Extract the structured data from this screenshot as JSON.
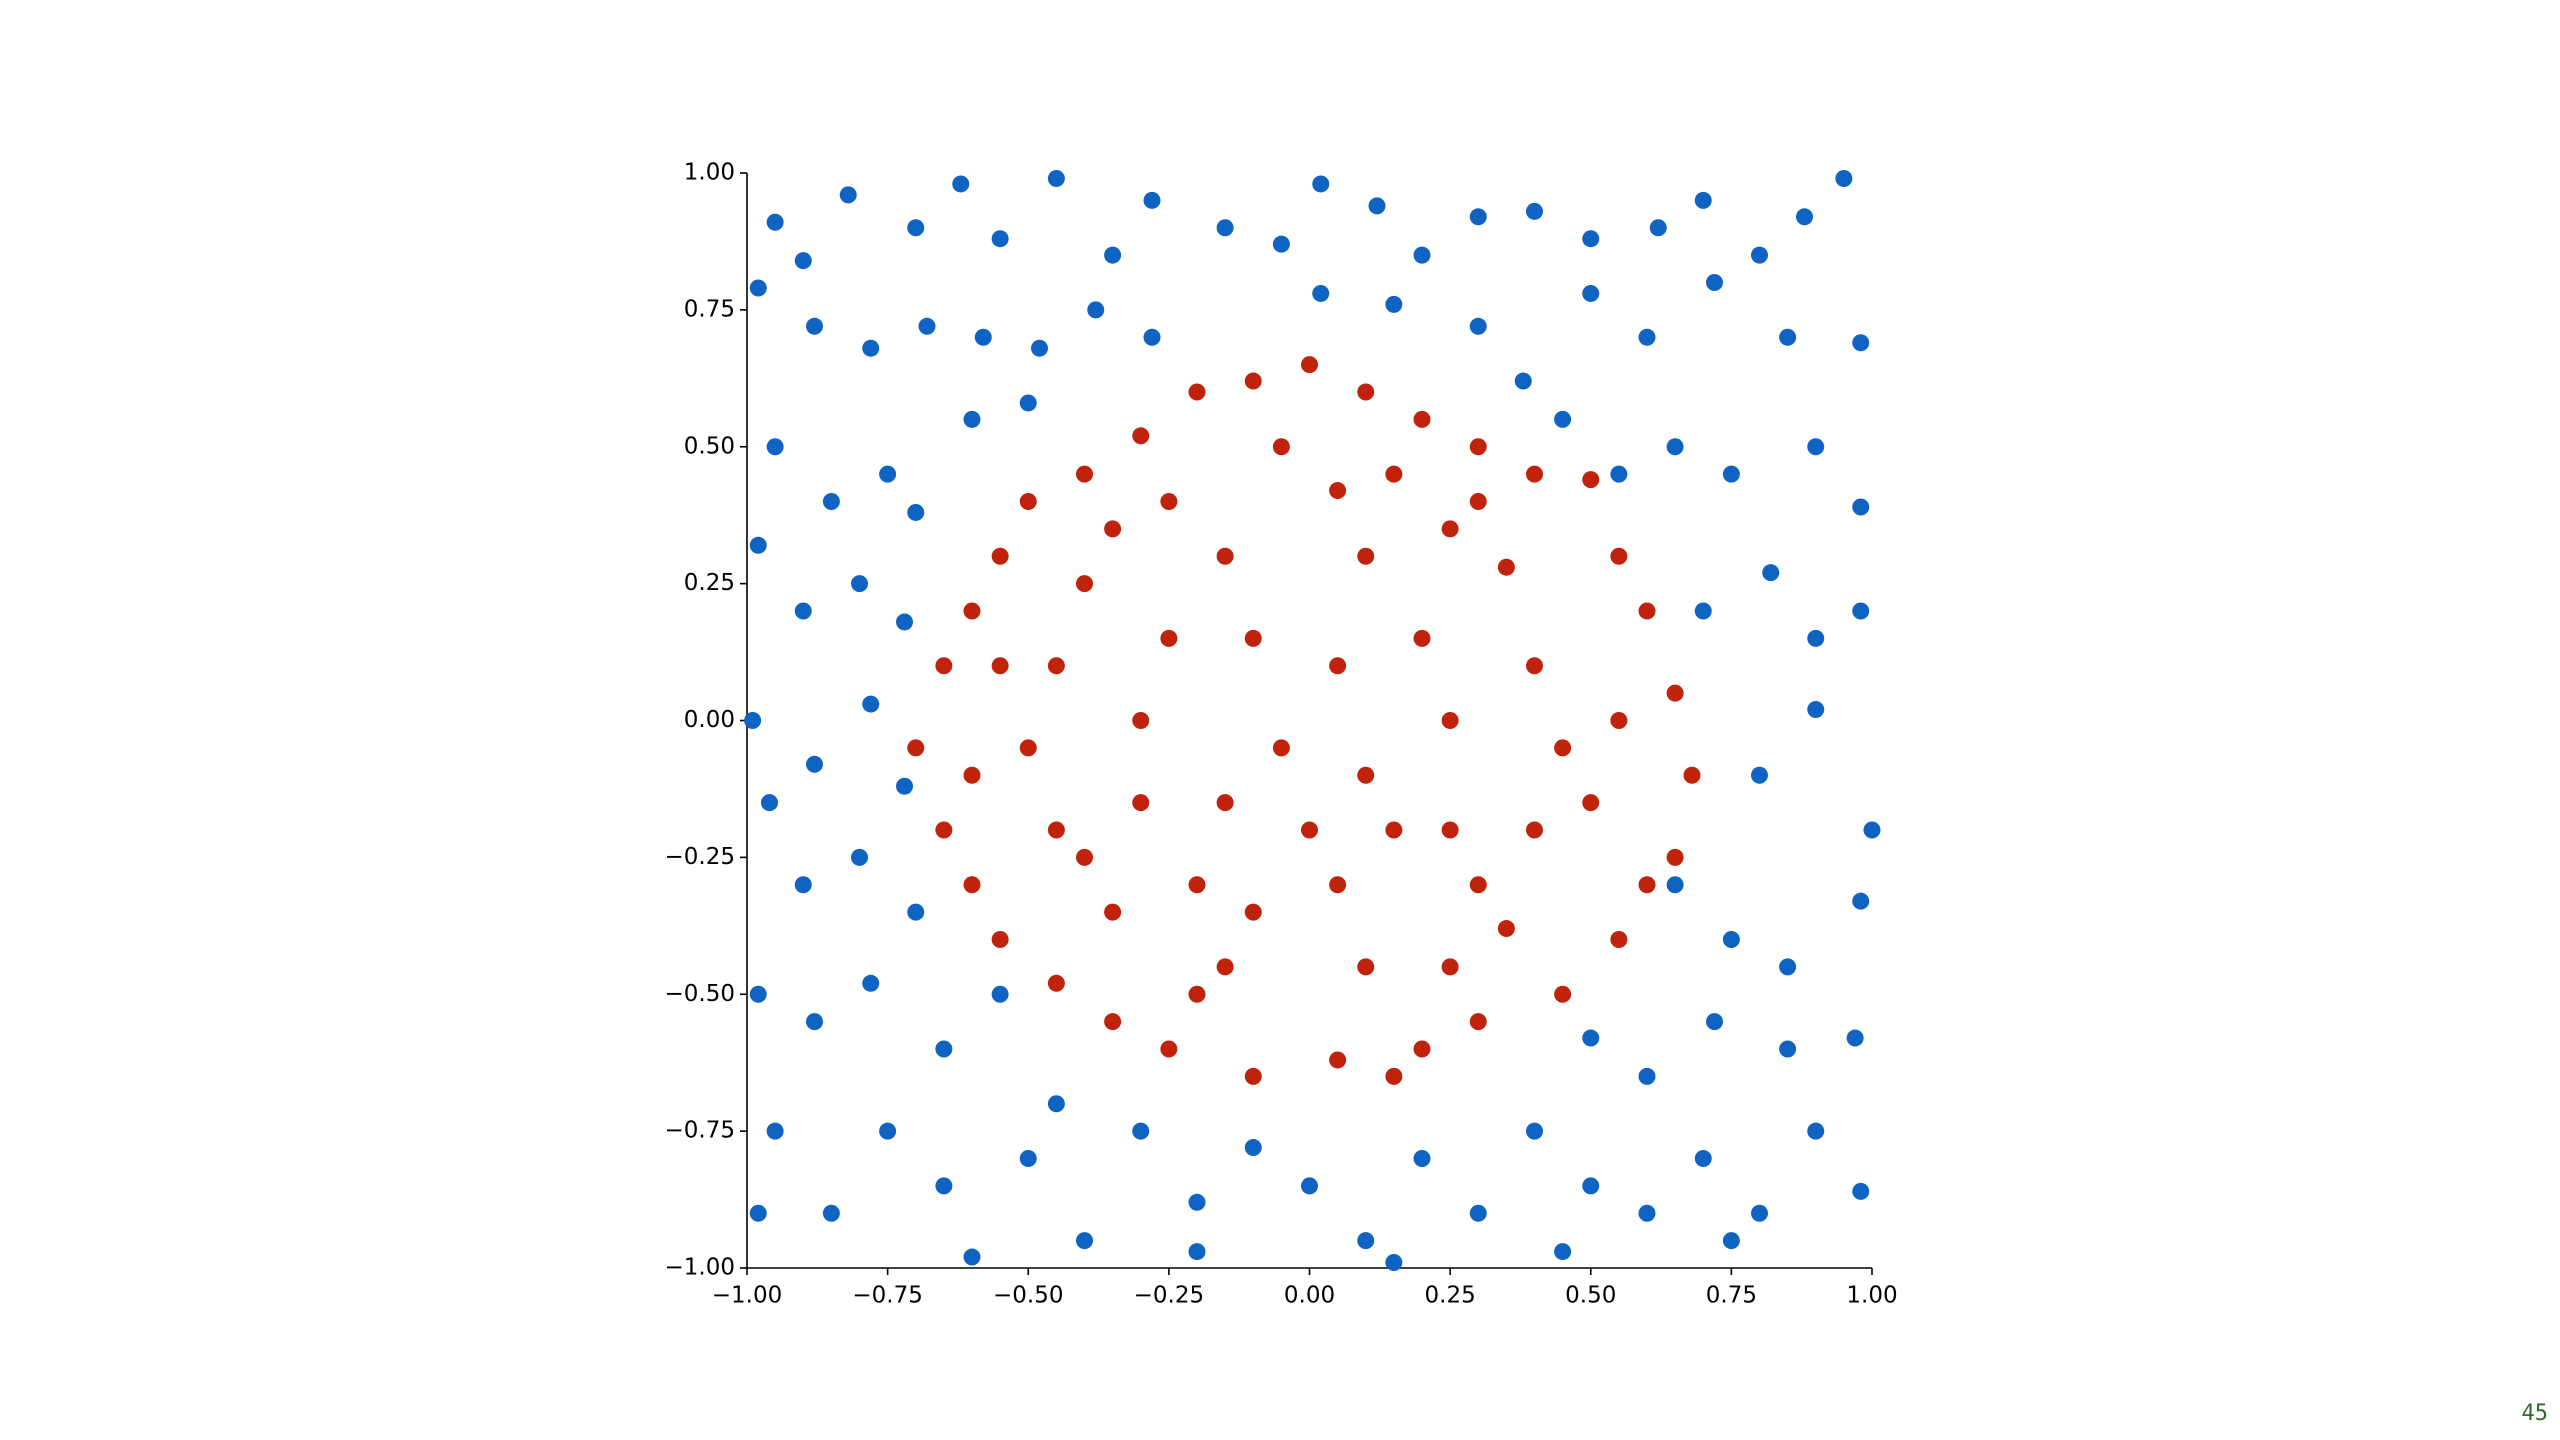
{
  "chart_data": {
    "type": "scatter",
    "xlim": [
      -1,
      1
    ],
    "ylim": [
      -1,
      1
    ],
    "xticks": [
      {
        "value": -1,
        "label": "−1.00"
      },
      {
        "value": -0.75,
        "label": "−0.75"
      },
      {
        "value": -0.5,
        "label": "−0.50"
      },
      {
        "value": -0.25,
        "label": "−0.25"
      },
      {
        "value": 0,
        "label": "0.00"
      },
      {
        "value": 0.25,
        "label": "0.25"
      },
      {
        "value": 0.5,
        "label": "0.50"
      },
      {
        "value": 0.75,
        "label": "0.75"
      },
      {
        "value": 1,
        "label": "1.00"
      }
    ],
    "yticks": [
      {
        "value": -1,
        "label": "−1.00"
      },
      {
        "value": -0.75,
        "label": "−0.75"
      },
      {
        "value": -0.5,
        "label": "−0.50"
      },
      {
        "value": -0.25,
        "label": "−0.25"
      },
      {
        "value": 0,
        "label": "0.00"
      },
      {
        "value": 0.25,
        "label": "0.25"
      },
      {
        "value": 0.5,
        "label": "0.50"
      },
      {
        "value": 0.75,
        "label": "0.75"
      },
      {
        "value": 1,
        "label": "1.00"
      }
    ],
    "grid": false,
    "series": [
      {
        "color": "#0f63c2",
        "x": [
          -0.95,
          -0.9,
          -0.82,
          -0.7,
          -0.62,
          -0.55,
          -0.45,
          -0.35,
          -0.28,
          -0.15,
          -0.05,
          0.02,
          0.12,
          0.2,
          0.3,
          0.4,
          0.5,
          0.62,
          0.7,
          0.8,
          0.88,
          0.95,
          -0.98,
          -0.88,
          -0.78,
          -0.68,
          -0.58,
          -0.48,
          -0.38,
          -0.28,
          0.02,
          0.15,
          0.3,
          0.38,
          0.5,
          0.6,
          0.72,
          0.85,
          0.98,
          -0.95,
          -0.85,
          -0.75,
          -0.7,
          -0.6,
          -0.5,
          0.45,
          0.55,
          0.65,
          0.75,
          0.9,
          0.98,
          -0.98,
          -0.9,
          -0.8,
          -0.72,
          0.7,
          0.82,
          0.9,
          0.98,
          -0.99,
          -0.88,
          -0.78,
          -0.72,
          0.8,
          0.9,
          1.0,
          -0.96,
          -0.9,
          -0.8,
          -0.7,
          0.65,
          0.75,
          0.85,
          0.98,
          -0.98,
          -0.88,
          -0.78,
          -0.65,
          -0.55,
          -0.45,
          0.5,
          0.6,
          0.72,
          0.85,
          0.97,
          -0.95,
          -0.85,
          -0.75,
          -0.65,
          -0.5,
          -0.4,
          -0.3,
          -0.2,
          -0.1,
          0.0,
          0.1,
          0.2,
          0.3,
          0.4,
          0.5,
          0.6,
          0.7,
          0.8,
          0.9,
          0.98,
          -0.98,
          -0.6,
          -0.2,
          0.15,
          0.45,
          0.75
        ],
        "values": [
          0.91,
          0.84,
          0.96,
          0.9,
          0.98,
          0.88,
          0.99,
          0.85,
          0.95,
          0.9,
          0.87,
          0.98,
          0.94,
          0.85,
          0.92,
          0.93,
          0.88,
          0.9,
          0.95,
          0.85,
          0.92,
          0.99,
          0.79,
          0.72,
          0.68,
          0.72,
          0.7,
          0.68,
          0.75,
          0.7,
          0.78,
          0.76,
          0.72,
          0.62,
          0.78,
          0.7,
          0.8,
          0.7,
          0.69,
          0.5,
          0.4,
          0.45,
          0.38,
          0.55,
          0.58,
          0.55,
          0.45,
          0.5,
          0.45,
          0.5,
          0.39,
          0.32,
          0.2,
          0.25,
          0.18,
          0.2,
          0.27,
          0.15,
          0.2,
          0.0,
          -0.08,
          0.03,
          -0.12,
          -0.1,
          0.02,
          -0.2,
          -0.15,
          -0.3,
          -0.25,
          -0.35,
          -0.3,
          -0.4,
          -0.45,
          -0.33,
          -0.5,
          -0.55,
          -0.48,
          -0.6,
          -0.5,
          -0.7,
          -0.58,
          -0.65,
          -0.55,
          -0.6,
          -0.58,
          -0.75,
          -0.9,
          -0.75,
          -0.85,
          -0.8,
          -0.95,
          -0.75,
          -0.88,
          -0.78,
          -0.85,
          -0.95,
          -0.8,
          -0.9,
          -0.75,
          -0.85,
          -0.9,
          -0.8,
          -0.9,
          -0.75,
          -0.86,
          -0.9,
          -0.98,
          -0.97,
          -0.99,
          -0.97,
          -0.95
        ]
      },
      {
        "color": "#c0220c",
        "x": [
          0.0,
          -0.1,
          0.1,
          0.2,
          -0.2,
          -0.3,
          0.3,
          -0.4,
          0.4,
          -0.5,
          0.5,
          -0.55,
          0.55,
          -0.6,
          0.6,
          -0.65,
          0.65,
          -0.7,
          0.68,
          -0.65,
          0.65,
          -0.6,
          0.6,
          -0.55,
          0.55,
          -0.45,
          0.45,
          -0.35,
          0.3,
          -0.25,
          0.2,
          -0.1,
          0.05,
          0.15,
          -0.25,
          0.05,
          0.25,
          -0.4,
          0.35,
          -0.45,
          0.4,
          -0.5,
          0.45,
          -0.45,
          0.4,
          -0.35,
          0.35,
          -0.15,
          0.1,
          -0.15,
          0.1,
          -0.25,
          0.2,
          -0.3,
          0.25,
          -0.3,
          0.25,
          -0.2,
          0.05,
          -0.1,
          0.05,
          -0.05,
          0.1,
          -0.15,
          0.15,
          0.0,
          -0.55,
          0.55,
          -0.2,
          0.25,
          -0.35,
          0.15,
          -0.05,
          0.3,
          -0.6,
          0.5,
          -0.4,
          0.3,
          -0.1
        ],
        "values": [
          0.65,
          0.62,
          0.6,
          0.55,
          0.6,
          0.52,
          0.5,
          0.45,
          0.45,
          0.4,
          0.44,
          0.3,
          0.3,
          0.2,
          0.2,
          0.1,
          0.05,
          -0.05,
          -0.1,
          -0.2,
          -0.25,
          -0.3,
          -0.3,
          -0.4,
          -0.4,
          -0.48,
          -0.5,
          -0.55,
          -0.55,
          -0.6,
          -0.6,
          -0.65,
          -0.62,
          -0.65,
          0.4,
          0.42,
          0.35,
          0.25,
          0.28,
          0.1,
          0.1,
          -0.05,
          -0.05,
          -0.2,
          -0.2,
          -0.35,
          -0.38,
          -0.45,
          -0.45,
          0.3,
          0.3,
          0.15,
          0.15,
          0.0,
          0.0,
          -0.15,
          -0.2,
          -0.3,
          -0.3,
          0.15,
          0.1,
          -0.05,
          -0.1,
          -0.15,
          -0.2,
          -0.2,
          0.1,
          0.0,
          -0.5,
          -0.45,
          0.35,
          0.45,
          0.5,
          0.4,
          -0.1,
          -0.15,
          -0.25,
          -0.3,
          -0.35
        ]
      }
    ]
  },
  "footer": {
    "page_number": "45"
  }
}
